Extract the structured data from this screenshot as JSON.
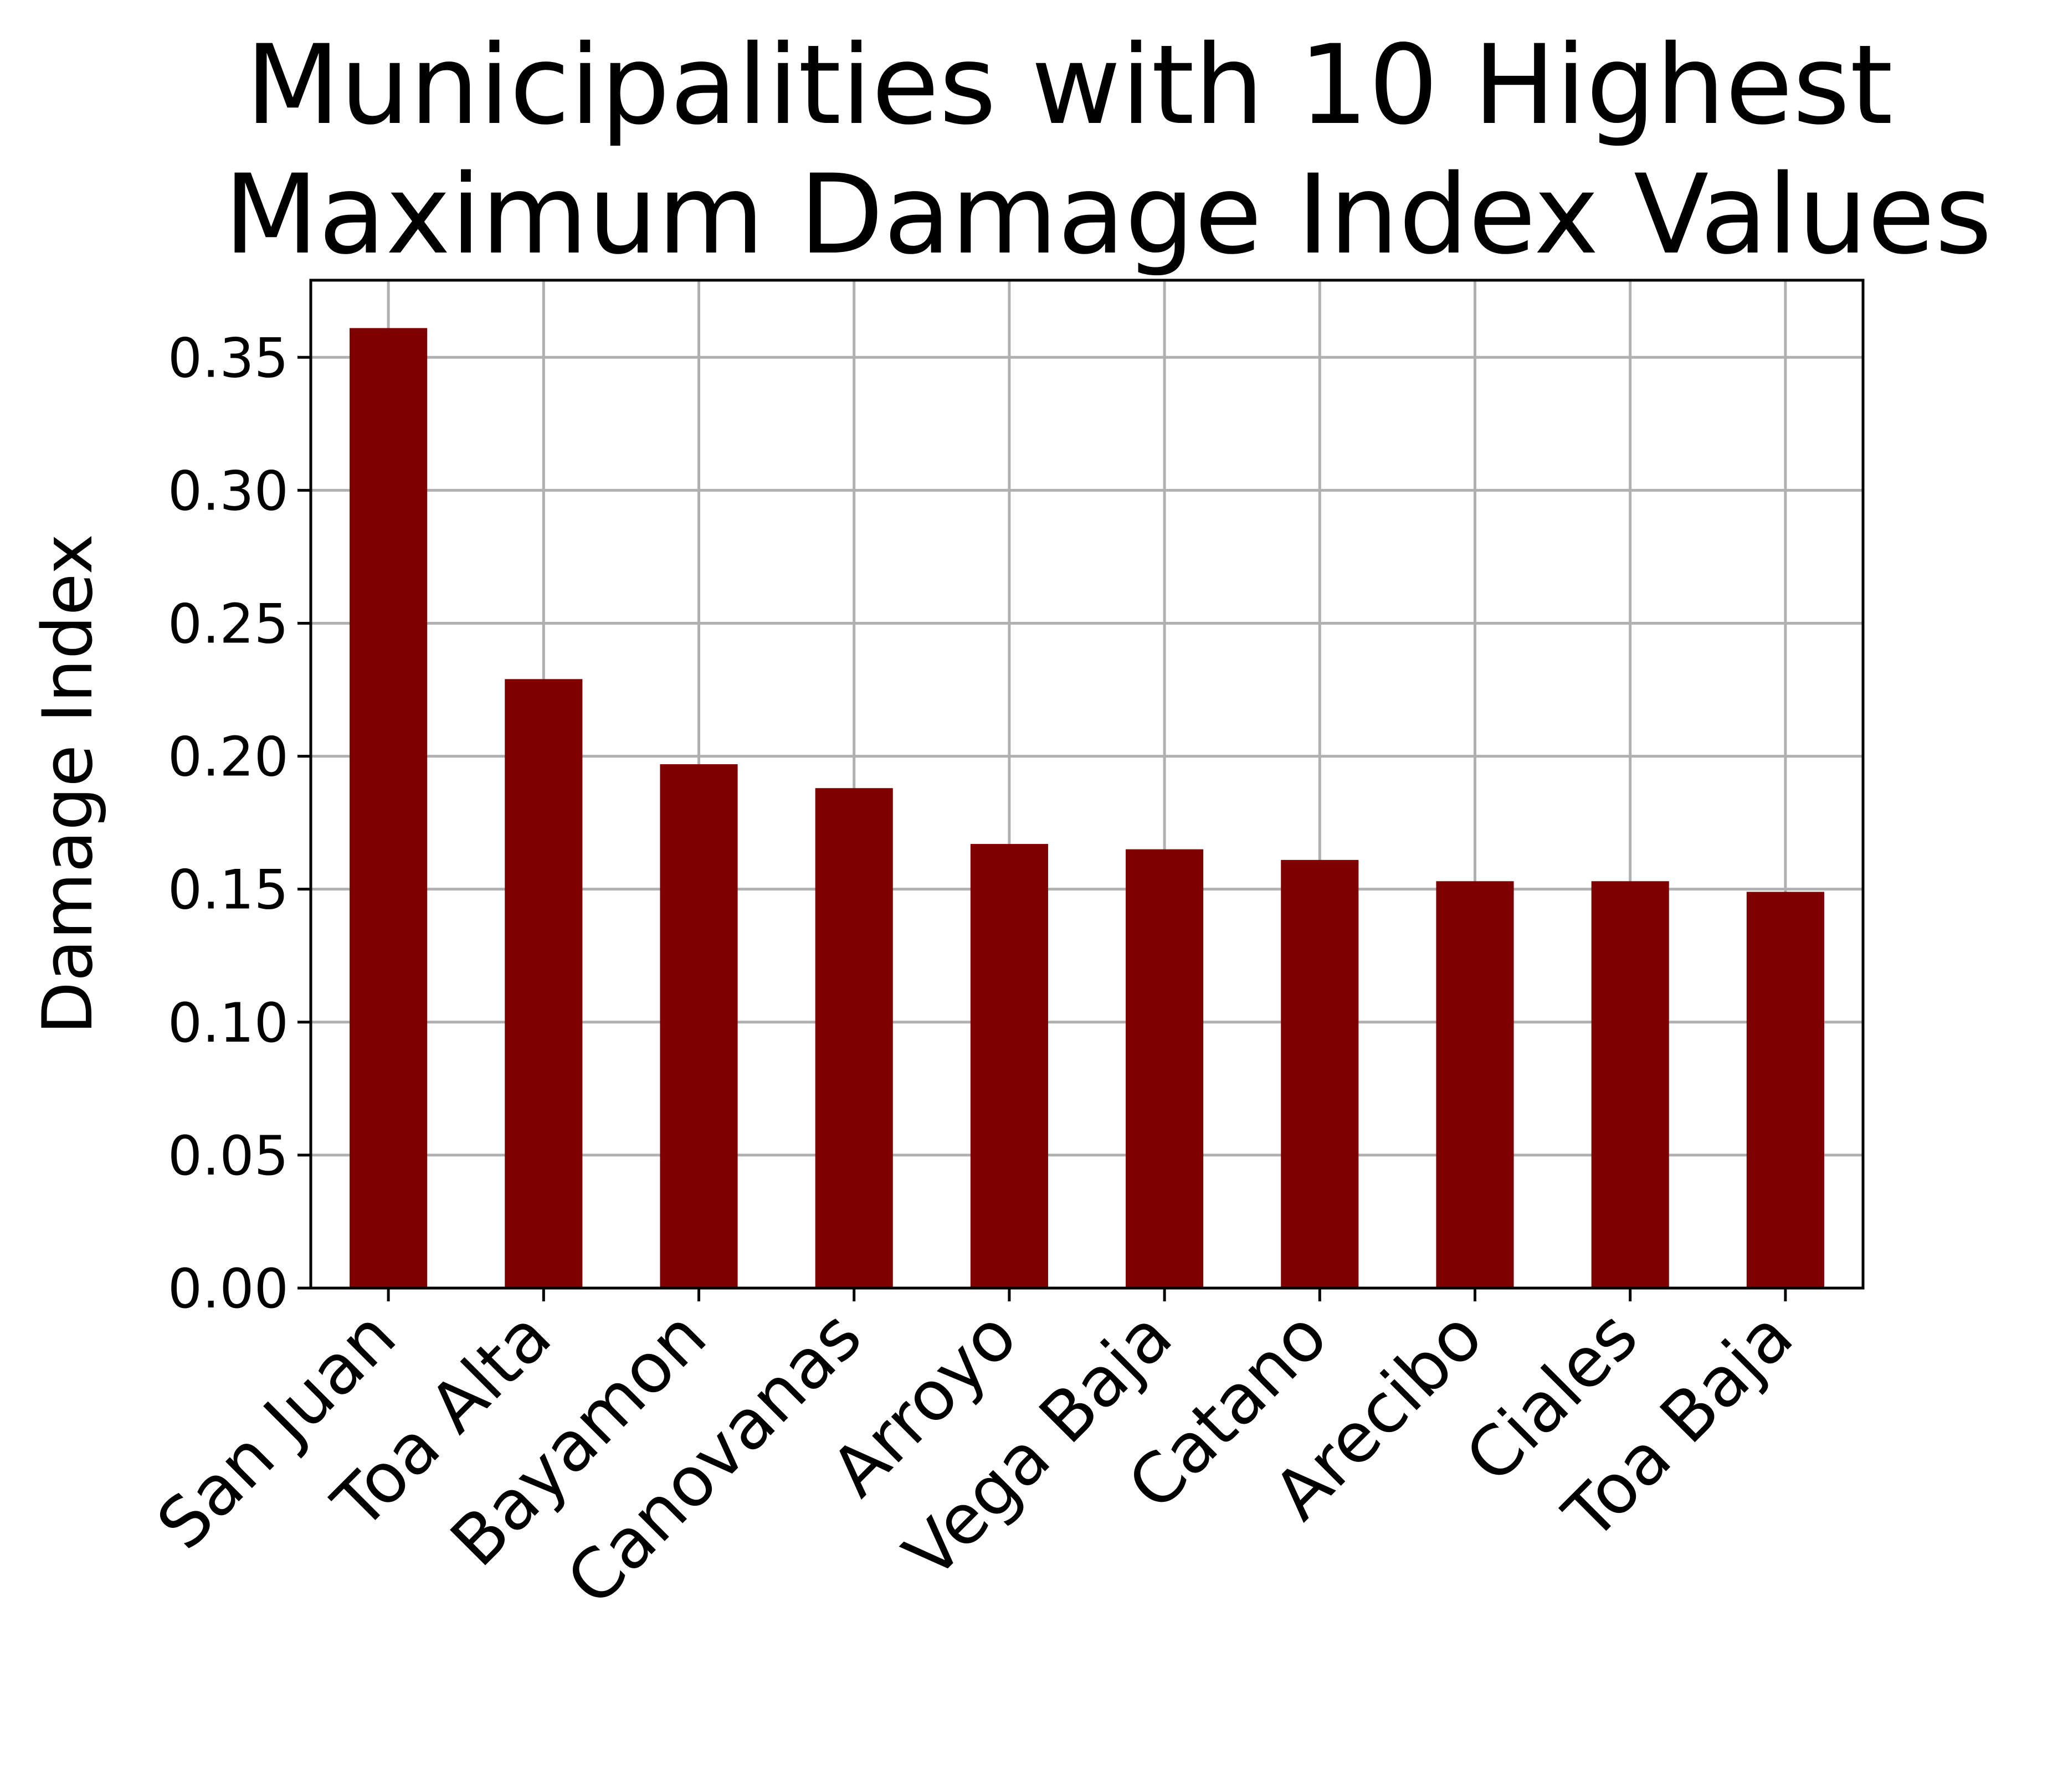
{
  "chart_data": {
    "type": "bar",
    "title": [
      "Municipalities with 10 Highest",
      "Maximum Damage Index Values"
    ],
    "xlabel": "",
    "ylabel": "Damage Index",
    "categories": [
      "San Juan",
      "Toa Alta",
      "Bayamon",
      "Canovanas",
      "Arroyo",
      "Vega Baja",
      "Catano",
      "Arecibo",
      "Ciales",
      "Toa Baja"
    ],
    "values": [
      0.361,
      0.229,
      0.197,
      0.188,
      0.167,
      0.165,
      0.161,
      0.153,
      0.153,
      0.149
    ],
    "ylim": [
      0,
      0.379
    ],
    "yticks": [
      "0.00",
      "0.05",
      "0.10",
      "0.15",
      "0.20",
      "0.25",
      "0.30",
      "0.35"
    ],
    "grid": true,
    "legend": "none",
    "colors": {
      "bar": "#7f0000",
      "grid": "#b0b0b0",
      "axis": "#000000"
    }
  }
}
